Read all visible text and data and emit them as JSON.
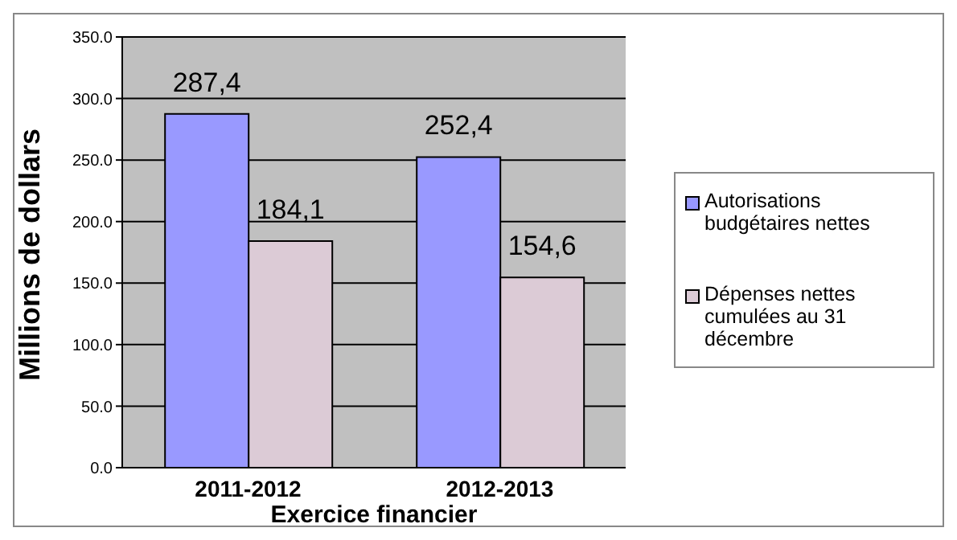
{
  "chart_data": {
    "type": "bar",
    "xlabel": "Exercice financier",
    "ylabel": "Millions de dollars",
    "categories": [
      "2011-2012",
      "2012-2013"
    ],
    "series": [
      {
        "name": "Autorisations budgétaires nettes",
        "color": "#9999ff",
        "values": [
          287.4,
          252.4
        ],
        "value_labels": [
          "287,4",
          "252,4"
        ]
      },
      {
        "name": "Dépenses nettes cumulées au 31 décembre",
        "color": "#dccbd6",
        "values": [
          184.1,
          154.6
        ],
        "value_labels": [
          "184,1",
          "154,6"
        ]
      }
    ],
    "ylim": [
      0,
      350
    ],
    "yticks": [
      {
        "value": 0,
        "label": "0.0"
      },
      {
        "value": 50,
        "label": "50.0"
      },
      {
        "value": 100,
        "label": "100.0"
      },
      {
        "value": 150,
        "label": "150.0"
      },
      {
        "value": 200,
        "label": "200.0"
      },
      {
        "value": 250,
        "label": "250.0"
      },
      {
        "value": 300,
        "label": "300.0"
      },
      {
        "value": 350,
        "label": "350.0"
      }
    ],
    "grid": "y",
    "legend": "right"
  }
}
